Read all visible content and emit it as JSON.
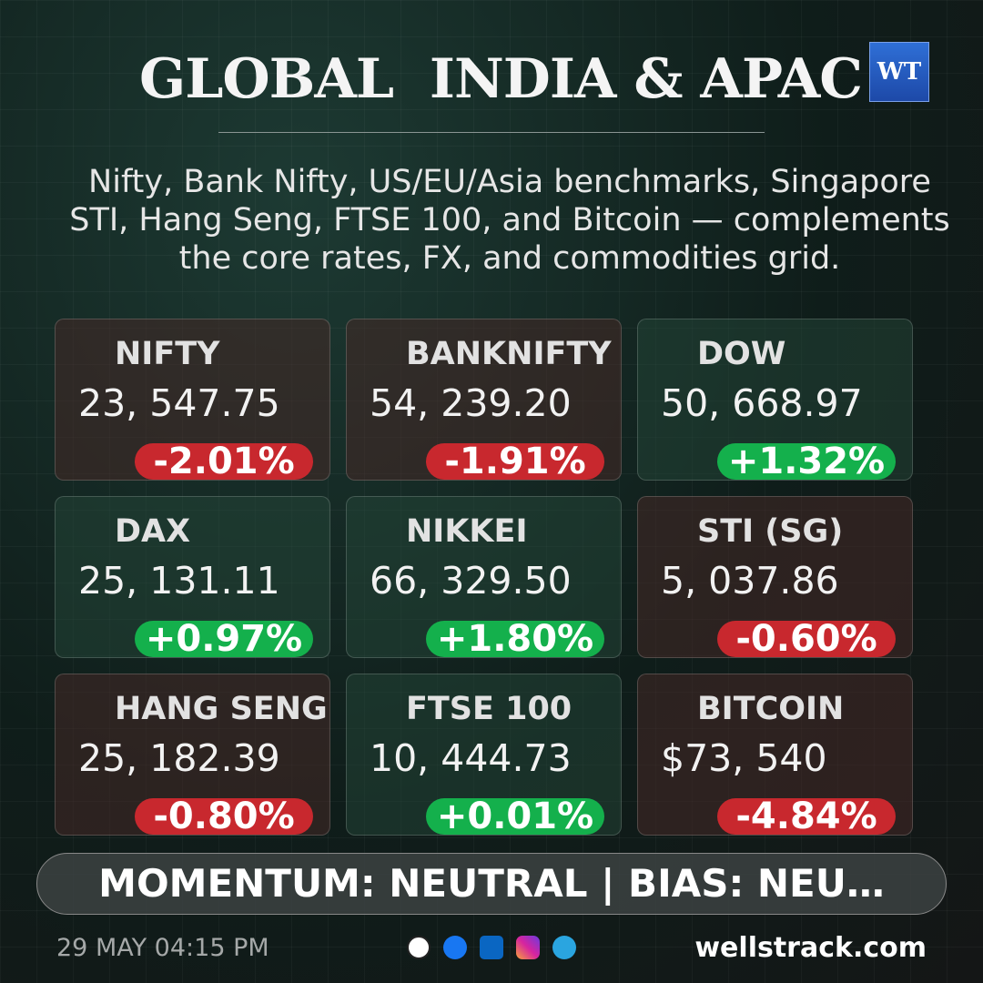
{
  "header": {
    "title": "GLOBAL  INDIA & APAC",
    "logo": "WT"
  },
  "subtitle": [
    "Nifty, Bank Nifty, US/EU/Asia benchmarks, Singapore",
    "STI, Hang Seng, FTSE 100, and Bitcoin — complements",
    "the core rates, FX, and commodities grid."
  ],
  "cards": [
    {
      "name": "NIFTY",
      "value": "23, 547.75",
      "change": "-2.01%"
    },
    {
      "name": "BANKNIFTY",
      "value": "54, 239.20",
      "change": "-1.91%"
    },
    {
      "name": "DOW",
      "value": "50, 668.97",
      "change": "+1.32%"
    },
    {
      "name": "DAX",
      "value": "25, 131.11",
      "change": "+0.97%"
    },
    {
      "name": "NIKKEI",
      "value": "66, 329.50",
      "change": "+1.80%"
    },
    {
      "name": "STI (SG)",
      "value": "5, 037.86",
      "change": "-0.60%"
    },
    {
      "name": "HANG SENG",
      "value": "25, 182.39",
      "change": "-0.80%"
    },
    {
      "name": "FTSE 100",
      "value": "10, 444.73",
      "change": "+0.01%"
    },
    {
      "name": "BITCOIN",
      "value": "$73, 540",
      "change": "-4.84%"
    }
  ],
  "banner": "MOMENTUM: NEUTRAL | BIAS: NEU…",
  "footer": {
    "timestamp": "29 MAY 04:15 PM",
    "site": "wellstrack.com"
  }
}
